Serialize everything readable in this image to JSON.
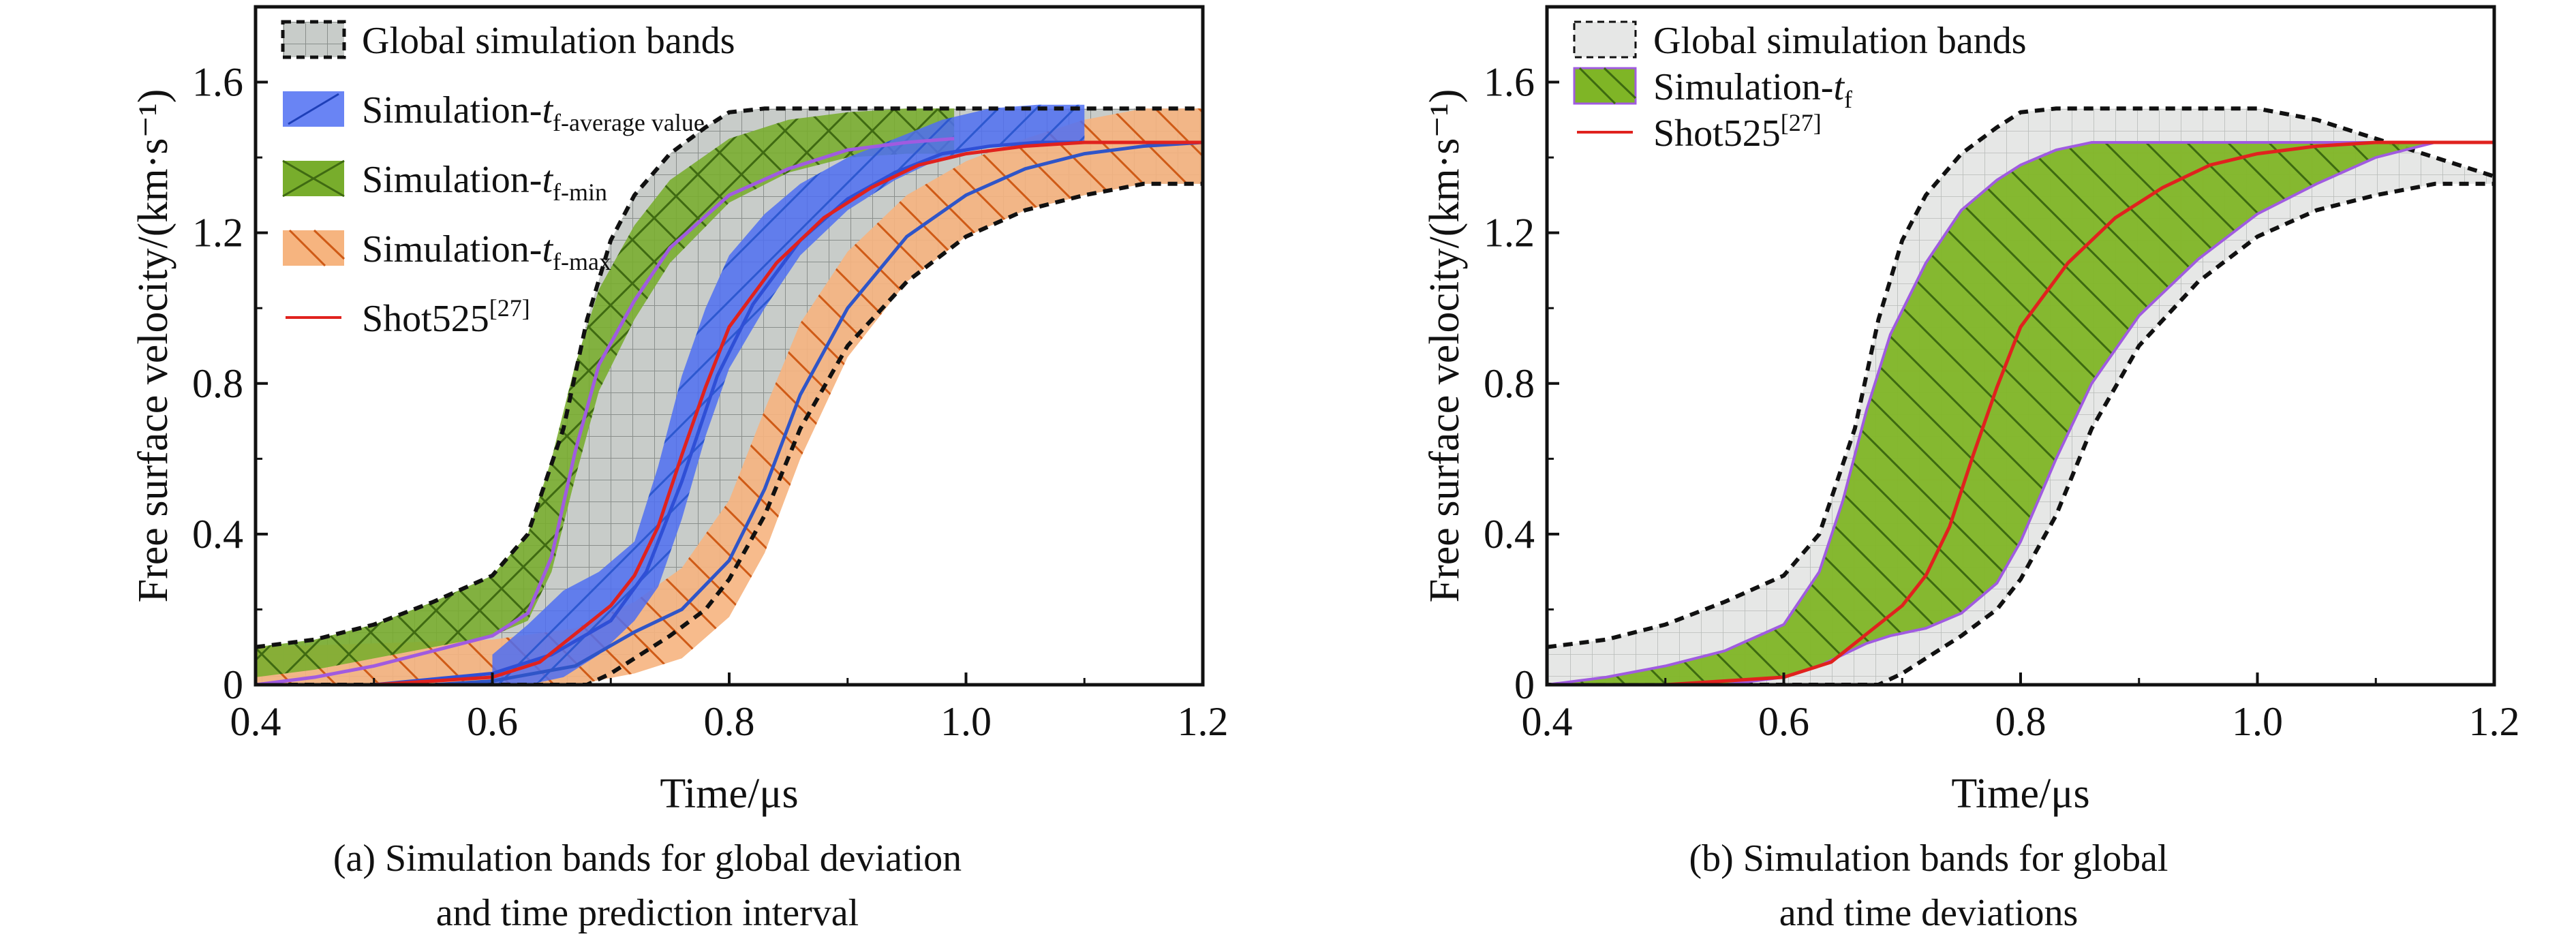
{
  "captions": {
    "a_line1": "(a) Simulation bands for global deviation",
    "a_line2": "and time prediction interval",
    "b_line1": "(b) Simulation bands for global",
    "b_line2": "and time deviations"
  },
  "colors": {
    "global_band": "#c8ccc9",
    "global_band_b": "#e6e7e6",
    "avg_band": "#4f6ef2",
    "min_band": "#78ad2c",
    "max_band": "#f6b47f",
    "shot_line": "#e0221e",
    "avg_line": "#2f4fd6",
    "max_line": "#2f55c8",
    "min_line": "#a05be0",
    "tf_band_b": "#7fb526",
    "tf_edge_b": "#a05be0"
  },
  "chart_data": [
    {
      "type": "area",
      "panel": "a",
      "xlabel": "Time/μs",
      "ylabel": "Free surface velocity/(km·s⁻¹)",
      "xlim": [
        0.4,
        1.2
      ],
      "ylim": [
        0,
        1.8
      ],
      "xticks": [
        "0.4",
        "0.6",
        "0.8",
        "1.0",
        "1.2"
      ],
      "yticks": [
        "0",
        "0.4",
        "0.8",
        "1.2",
        "1.6"
      ],
      "legend_position": "top-left",
      "grid": false,
      "legend": [
        {
          "label": "Global simulation bands",
          "style": "band-dashed"
        },
        {
          "label": "Simulation-t",
          "sub": "f-average value",
          "style": "band-avg"
        },
        {
          "label": "Simulation-t",
          "sub": "f-min",
          "style": "band-min"
        },
        {
          "label": "Simulation-t",
          "sub": "f-max",
          "style": "band-max"
        },
        {
          "label": "Shot525",
          "sup": "[27]",
          "style": "line"
        }
      ],
      "series": [
        {
          "name": "Global simulation bands",
          "x": [
            0.4,
            0.45,
            0.5,
            0.55,
            0.6,
            0.63,
            0.66,
            0.68,
            0.7,
            0.72,
            0.75,
            0.78,
            0.8,
            0.83,
            0.86,
            0.9,
            0.95,
            1.0,
            1.05,
            1.1,
            1.15,
            1.2
          ],
          "lower": [
            0,
            0,
            0,
            0,
            0,
            0,
            0,
            0,
            0.03,
            0.07,
            0.13,
            0.2,
            0.28,
            0.45,
            0.68,
            0.9,
            1.07,
            1.19,
            1.26,
            1.3,
            1.33,
            1.33
          ],
          "upper": [
            0.1,
            0.12,
            0.16,
            0.22,
            0.29,
            0.4,
            0.68,
            0.97,
            1.18,
            1.3,
            1.41,
            1.48,
            1.52,
            1.53,
            1.53,
            1.53,
            1.53,
            1.53,
            1.53,
            1.53,
            1.53,
            1.53
          ]
        },
        {
          "name": "Simulation-tf-average value",
          "x": [
            0.6,
            0.63,
            0.66,
            0.69,
            0.72,
            0.74,
            0.76,
            0.78,
            0.8,
            0.83,
            0.86,
            0.9,
            0.94,
            0.98,
            1.02,
            1.06,
            1.1
          ],
          "lower": [
            0,
            0,
            0.02,
            0.08,
            0.17,
            0.26,
            0.44,
            0.66,
            0.84,
            1.0,
            1.14,
            1.26,
            1.34,
            1.4,
            1.43,
            1.44,
            1.44
          ],
          "upper": [
            0.08,
            0.16,
            0.25,
            0.3,
            0.38,
            0.58,
            0.82,
            1.0,
            1.14,
            1.25,
            1.33,
            1.4,
            1.45,
            1.5,
            1.53,
            1.54,
            1.54
          ]
        },
        {
          "name": "Simulation-tf-min",
          "x": [
            0.4,
            0.45,
            0.5,
            0.55,
            0.6,
            0.63,
            0.65,
            0.67,
            0.69,
            0.72,
            0.75,
            0.8,
            0.85,
            0.9,
            0.95,
            0.99
          ],
          "lower": [
            0.02,
            0.04,
            0.07,
            0.1,
            0.13,
            0.17,
            0.3,
            0.55,
            0.78,
            0.97,
            1.12,
            1.28,
            1.36,
            1.4,
            1.41,
            1.41
          ],
          "upper": [
            0.1,
            0.12,
            0.16,
            0.22,
            0.29,
            0.4,
            0.6,
            0.85,
            1.05,
            1.22,
            1.34,
            1.45,
            1.5,
            1.52,
            1.53,
            1.53
          ]
        },
        {
          "name": "Simulation-tf-max",
          "x": [
            0.4,
            0.5,
            0.6,
            0.67,
            0.72,
            0.76,
            0.8,
            0.83,
            0.86,
            0.9,
            0.95,
            1.0,
            1.05,
            1.1,
            1.15,
            1.2
          ],
          "lower": [
            0,
            0,
            0,
            0,
            0.03,
            0.07,
            0.18,
            0.35,
            0.6,
            0.87,
            1.07,
            1.19,
            1.26,
            1.3,
            1.33,
            1.33
          ],
          "upper": [
            0.1,
            0.11,
            0.12,
            0.15,
            0.22,
            0.31,
            0.49,
            0.73,
            0.96,
            1.15,
            1.3,
            1.39,
            1.45,
            1.5,
            1.53,
            1.53
          ]
        },
        {
          "name": "Shot525[27]",
          "x": [
            0.4,
            0.5,
            0.6,
            0.64,
            0.68,
            0.7,
            0.72,
            0.74,
            0.76,
            0.78,
            0.8,
            0.84,
            0.88,
            0.92,
            0.96,
            1.0,
            1.05,
            1.1,
            1.2
          ],
          "y": [
            0,
            0,
            0.02,
            0.06,
            0.16,
            0.21,
            0.29,
            0.42,
            0.61,
            0.79,
            0.95,
            1.12,
            1.24,
            1.32,
            1.38,
            1.41,
            1.43,
            1.44,
            1.44
          ]
        }
      ],
      "inner_lines": [
        {
          "role": "min-center",
          "x": [
            0.4,
            0.45,
            0.5,
            0.55,
            0.6,
            0.63,
            0.65,
            0.67,
            0.69,
            0.72,
            0.75,
            0.8,
            0.85,
            0.9,
            0.95,
            0.99
          ],
          "y": [
            0,
            0.02,
            0.05,
            0.09,
            0.13,
            0.19,
            0.34,
            0.62,
            0.85,
            1.02,
            1.16,
            1.3,
            1.37,
            1.42,
            1.44,
            1.45
          ]
        },
        {
          "role": "avg-center",
          "x": [
            0.5,
            0.6,
            0.65,
            0.7,
            0.73,
            0.76,
            0.79,
            0.82,
            0.86,
            0.9,
            0.94,
            0.98,
            1.02,
            1.06,
            1.1
          ],
          "y": [
            0,
            0.03,
            0.08,
            0.17,
            0.3,
            0.54,
            0.82,
            1.01,
            1.18,
            1.29,
            1.36,
            1.41,
            1.43,
            1.44,
            1.44
          ]
        },
        {
          "role": "max-center",
          "x": [
            0.55,
            0.6,
            0.67,
            0.72,
            0.76,
            0.8,
            0.83,
            0.86,
            0.9,
            0.95,
            1.0,
            1.05,
            1.1,
            1.15,
            1.2
          ],
          "y": [
            0,
            0.01,
            0.05,
            0.14,
            0.2,
            0.33,
            0.52,
            0.77,
            1.0,
            1.19,
            1.3,
            1.37,
            1.41,
            1.43,
            1.44
          ]
        }
      ]
    },
    {
      "type": "area",
      "panel": "b",
      "xlabel": "Time/μs",
      "ylabel": "Free surface velocity/(km·s⁻¹)",
      "xlim": [
        0.4,
        1.2
      ],
      "ylim": [
        0,
        1.8
      ],
      "xticks": [
        "0.4",
        "0.6",
        "0.8",
        "1.0",
        "1.2"
      ],
      "yticks": [
        "0",
        "0.4",
        "0.8",
        "1.2",
        "1.6"
      ],
      "legend_position": "top-left",
      "grid": false,
      "legend": [
        {
          "label": "Global simulation bands",
          "style": "band-dashed"
        },
        {
          "label": "Simulation-t",
          "sub": "f",
          "style": "band-tf"
        },
        {
          "label": "Shot525",
          "sup": "[27]",
          "style": "line"
        }
      ],
      "series": [
        {
          "name": "Global simulation bands",
          "x": [
            0.4,
            0.45,
            0.5,
            0.55,
            0.6,
            0.63,
            0.66,
            0.68,
            0.7,
            0.72,
            0.75,
            0.78,
            0.8,
            0.83,
            0.86,
            0.9,
            0.95,
            1.0,
            1.05,
            1.1,
            1.15,
            1.2
          ],
          "lower": [
            0,
            0,
            0,
            0,
            0,
            0,
            0,
            0,
            0.03,
            0.07,
            0.13,
            0.2,
            0.28,
            0.45,
            0.68,
            0.9,
            1.07,
            1.19,
            1.26,
            1.3,
            1.33,
            1.33
          ],
          "upper": [
            0.1,
            0.12,
            0.16,
            0.22,
            0.29,
            0.4,
            0.68,
            0.97,
            1.18,
            1.3,
            1.41,
            1.48,
            1.52,
            1.53,
            1.53,
            1.53,
            1.53,
            1.53,
            1.5,
            1.45,
            1.4,
            1.35
          ]
        },
        {
          "name": "Simulation-tf",
          "x": [
            0.4,
            0.45,
            0.5,
            0.55,
            0.6,
            0.63,
            0.65,
            0.67,
            0.69,
            0.72,
            0.75,
            0.78,
            0.8,
            0.83,
            0.86,
            0.9,
            0.95,
            1.0,
            1.05,
            1.1,
            1.15,
            1.2
          ],
          "lower": [
            0,
            0,
            0,
            0,
            0.02,
            0.05,
            0.08,
            0.11,
            0.13,
            0.15,
            0.19,
            0.27,
            0.38,
            0.6,
            0.8,
            0.98,
            1.13,
            1.25,
            1.33,
            1.4,
            1.44,
            1.44
          ],
          "upper": [
            0,
            0.02,
            0.05,
            0.09,
            0.16,
            0.3,
            0.49,
            0.73,
            0.93,
            1.12,
            1.26,
            1.34,
            1.38,
            1.42,
            1.44,
            1.44,
            1.44,
            1.44,
            1.44,
            1.44,
            1.44,
            1.44
          ]
        },
        {
          "name": "Shot525[27]",
          "x": [
            0.4,
            0.5,
            0.6,
            0.64,
            0.68,
            0.7,
            0.72,
            0.74,
            0.76,
            0.78,
            0.8,
            0.84,
            0.88,
            0.92,
            0.96,
            1.0,
            1.05,
            1.1,
            1.2
          ],
          "y": [
            0,
            0,
            0.02,
            0.06,
            0.16,
            0.21,
            0.29,
            0.42,
            0.61,
            0.79,
            0.95,
            1.12,
            1.24,
            1.32,
            1.38,
            1.41,
            1.43,
            1.44,
            1.44
          ]
        }
      ]
    }
  ]
}
